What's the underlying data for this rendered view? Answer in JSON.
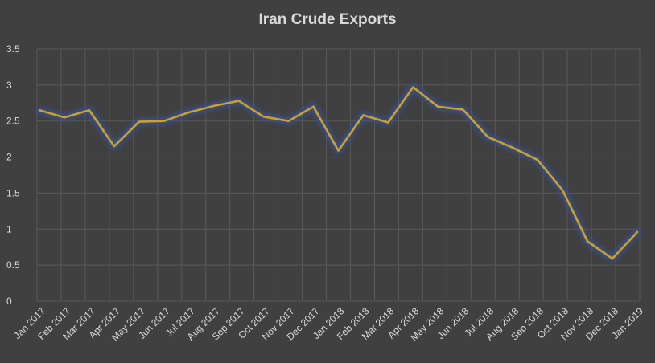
{
  "chart_data": {
    "type": "line",
    "title": "Iran Crude Exports",
    "xlabel": "",
    "ylabel": "",
    "ylim": [
      0,
      3.5
    ],
    "yticks": [
      "0",
      "0.5",
      "1",
      "1.5",
      "2",
      "2.5",
      "3",
      "3.5"
    ],
    "grid": true,
    "legend": "none",
    "categories": [
      "Jan 2017",
      "Feb 2017",
      "Mar 2017",
      "Apr 2017",
      "May 2017",
      "Jun 2017",
      "Jul 2017",
      "Aug 2017",
      "Sep 2017",
      "Oct 2017",
      "Nov 2017",
      "Dec 2017",
      "Jan 2018",
      "Feb 2018",
      "Mar 2018",
      "Apr 2018",
      "May 2018",
      "Jun 2018",
      "Jul 2018",
      "Aug 2018",
      "Sep 2018",
      "Oct 2018",
      "Nov 2018",
      "Dec 2018",
      "Jan 2019"
    ],
    "series": [
      {
        "color": "#c9a227",
        "values": [
          2.65,
          2.55,
          2.65,
          2.15,
          2.49,
          2.5,
          2.62,
          2.71,
          2.78,
          2.56,
          2.5,
          2.7,
          2.09,
          2.58,
          2.48,
          2.97,
          2.7,
          2.66,
          2.28,
          2.13,
          1.96,
          1.54,
          0.83,
          0.59,
          0.96
        ]
      }
    ],
    "colors": {
      "background": "#404040",
      "grid": "#595959",
      "text": "#d9d9d9",
      "line": "#c9a227",
      "glow": "#3b4f8c"
    }
  }
}
